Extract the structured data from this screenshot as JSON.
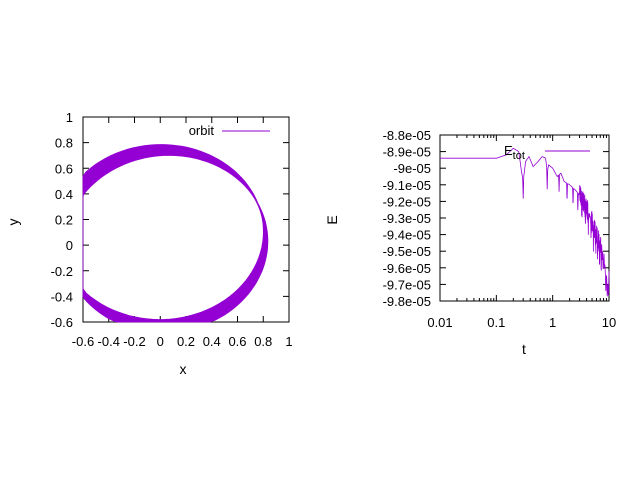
{
  "chart_data": [
    {
      "type": "line",
      "title": "",
      "xlabel": "x",
      "ylabel": "y",
      "xlim": [
        -0.6,
        1
      ],
      "ylim": [
        -0.6,
        1
      ],
      "grid": false,
      "legend_position": "top-right",
      "x_ticks": [
        -0.6,
        -0.4,
        -0.2,
        0,
        0.2,
        0.4,
        0.6,
        0.8,
        1
      ],
      "x_tick_labels": [
        "-0.6",
        "-0.4",
        "-0.2",
        "0",
        "0.2",
        "0.4",
        "0.6",
        "0.8",
        "1"
      ],
      "y_ticks": [
        -0.6,
        -0.4,
        -0.2,
        0,
        0.2,
        0.4,
        0.6,
        0.8,
        1
      ],
      "y_tick_labels": [
        "-0.6",
        "-0.4",
        "-0.2",
        "0",
        "0.2",
        "0.4",
        "0.6",
        "0.8",
        "1"
      ],
      "series": [
        {
          "name": "orbit",
          "color": "#9400d3",
          "kind": "precessing-ellipse",
          "semi_major": 0.8,
          "eccentricity": 0.25,
          "orbits": 24,
          "precession_start_deg": 5,
          "precession_end_deg": 40
        }
      ]
    },
    {
      "type": "line",
      "title": "",
      "xlabel": "t",
      "ylabel": "E",
      "xscale": "log",
      "xlim": [
        0.01,
        10
      ],
      "ylim": [
        -9.8e-05,
        -8.8e-05
      ],
      "grid": false,
      "legend_position": "top-right",
      "x_ticks": [
        0.01,
        0.1,
        1,
        10
      ],
      "x_tick_labels": [
        "0.01",
        "0.1",
        "1",
        "10"
      ],
      "y_ticks": [
        -8.8e-05,
        -8.9e-05,
        -9e-05,
        -9.1e-05,
        -9.2e-05,
        -9.3e-05,
        -9.4e-05,
        -9.5e-05,
        -9.6e-05,
        -9.7e-05,
        -9.8e-05
      ],
      "y_tick_labels": [
        "-8.8e-05",
        "-8.9e-05",
        "-9e-05",
        "-9.1e-05",
        "-9.2e-05",
        "-9.3e-05",
        "-9.4e-05",
        "-9.5e-05",
        "-9.6e-05",
        "-9.7e-05",
        "-9.8e-05"
      ],
      "series": [
        {
          "name": "E",
          "name_subscript": "tot",
          "color": "#9400d3",
          "baseline": -8.94e-05,
          "t_points": [
            0.01,
            0.05,
            0.1,
            0.15,
            0.2,
            0.25,
            0.28,
            0.3,
            0.33,
            0.38,
            0.45,
            0.55,
            0.65,
            0.75,
            0.8,
            0.85,
            1.0,
            1.2,
            1.4,
            1.6,
            2.0,
            2.5,
            3.0,
            4.0,
            5.0,
            6.0,
            7.0,
            8.0,
            9.0,
            10.0
          ],
          "e_values": [
            -8.94e-05,
            -8.94e-05,
            -8.94e-05,
            -8.92e-05,
            -8.88e-05,
            -8.9e-05,
            -9.02e-05,
            -9.08e-05,
            -8.96e-05,
            -8.93e-05,
            -8.99e-05,
            -8.96e-05,
            -8.93e-05,
            -8.94e-05,
            -9.02e-05,
            -8.98e-05,
            -9e-05,
            -9.05e-05,
            -9.03e-05,
            -9.08e-05,
            -9.1e-05,
            -9.13e-05,
            -9.16e-05,
            -9.24e-05,
            -9.32e-05,
            -9.4e-05,
            -9.46e-05,
            -9.53e-05,
            -9.6e-05,
            -9.68e-05
          ],
          "spike_times": [
            0.3,
            0.8,
            1.3,
            1.8,
            2.3,
            2.8,
            3.3,
            3.8,
            4.3,
            4.8,
            5.3,
            5.8,
            6.3,
            6.8,
            7.3,
            7.8,
            8.3,
            8.8,
            9.3,
            9.8
          ]
        }
      ]
    }
  ]
}
